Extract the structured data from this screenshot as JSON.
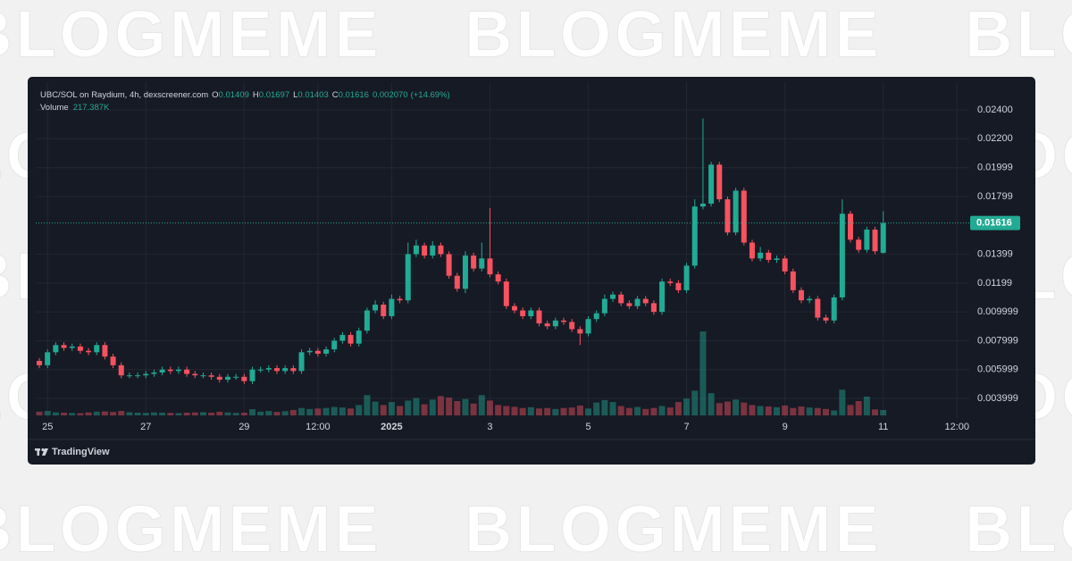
{
  "watermark": "BLOGMEME",
  "brand": "TradingView",
  "chart_data": {
    "type": "candlestick",
    "title": "UBC/SOL on Raydium, 4h, dexscreener.com",
    "ohlc_keys": [
      "O",
      "H",
      "L",
      "C"
    ],
    "change_label": "0.002070",
    "change_pct_label": "(+14.69%)",
    "volume_title": "Volume",
    "volume_value_label": "217.387K",
    "up_color": "#22ab94",
    "down_color": "#f7525f",
    "grid": true,
    "xlim": [
      -0.44,
      113.5
    ],
    "xticks": [
      {
        "value": 1,
        "label": "25"
      },
      {
        "value": 13,
        "label": "27"
      },
      {
        "value": 25,
        "label": "29"
      },
      {
        "value": 34,
        "label": "12:00"
      },
      {
        "value": 43,
        "label": "2025"
      },
      {
        "value": 55,
        "label": "3"
      },
      {
        "value": 67,
        "label": "5"
      },
      {
        "value": 79,
        "label": "7"
      },
      {
        "value": 91,
        "label": "9"
      },
      {
        "value": 103,
        "label": "11"
      },
      {
        "value": 112,
        "label": "12:00"
      }
    ],
    "ylim": [
      0.00264,
      0.02542
    ],
    "yticks": [
      {
        "value": 0.024,
        "label": "0.02400"
      },
      {
        "value": 0.022,
        "label": "0.02200"
      },
      0.01999,
      0.01799,
      0.01399,
      0.01199,
      0.009999,
      0.007999,
      0.005999,
      0.003999
    ],
    "open": [
      0.0066,
      0.0063,
      0.0072,
      0.0077,
      0.0075,
      0.0076,
      0.0073,
      0.0072,
      0.0077,
      0.0069,
      0.0063,
      0.0056,
      0.0056,
      0.0056,
      0.0057,
      0.0058,
      0.006,
      0.0059,
      0.006,
      0.0057,
      0.0056,
      0.0056,
      0.0055,
      0.0053,
      0.0055,
      0.0055,
      0.0052,
      0.006,
      0.006,
      0.0061,
      0.0059,
      0.0061,
      0.0059,
      0.0072,
      0.0073,
      0.0071,
      0.0074,
      0.008,
      0.0084,
      0.0078,
      0.0087,
      0.0101,
      0.0105,
      0.0097,
      0.0109,
      0.0108,
      0.014,
      0.0146,
      0.0139,
      0.0146,
      0.014,
      0.0125,
      0.0116,
      0.0139,
      0.013,
      0.0137,
      0.0126,
      0.0121,
      0.0104,
      0.0101,
      0.0097,
      0.0101,
      0.0092,
      0.009,
      0.0094,
      0.0093,
      0.0088,
      0.0085,
      0.0095,
      0.0099,
      0.0109,
      0.0112,
      0.0106,
      0.0104,
      0.0109,
      0.0106,
      0.01,
      0.0121,
      0.012,
      0.0115,
      0.0132,
      0.0173,
      0.0175,
      0.0202,
      0.0178,
      0.0155,
      0.0184,
      0.0148,
      0.0137,
      0.0141,
      0.0136,
      0.0137,
      0.0128,
      0.0115,
      0.0108,
      0.0109,
      0.0096,
      0.0094,
      0.011,
      0.0168,
      0.015,
      0.0143,
      0.0157,
      0.01409
    ],
    "high": [
      0.0068,
      0.0074,
      0.0079,
      0.0079,
      0.0078,
      0.0078,
      0.0075,
      0.0079,
      0.0079,
      0.0071,
      0.0065,
      0.0058,
      0.0058,
      0.0059,
      0.006,
      0.0062,
      0.0062,
      0.0062,
      0.0062,
      0.0059,
      0.0058,
      0.0058,
      0.0057,
      0.0057,
      0.0057,
      0.0057,
      0.0062,
      0.0062,
      0.0063,
      0.0063,
      0.0063,
      0.0063,
      0.0074,
      0.0075,
      0.0075,
      0.0076,
      0.0082,
      0.0086,
      0.0086,
      0.0089,
      0.0103,
      0.0108,
      0.0107,
      0.0112,
      0.0111,
      0.0148,
      0.015,
      0.0148,
      0.0149,
      0.0148,
      0.0142,
      0.0127,
      0.0142,
      0.0141,
      0.0148,
      0.0172,
      0.0128,
      0.0123,
      0.0106,
      0.0103,
      0.0103,
      0.0103,
      0.0094,
      0.0096,
      0.0096,
      0.0095,
      0.009,
      0.0097,
      0.0101,
      0.0112,
      0.0114,
      0.0114,
      0.0108,
      0.0111,
      0.0111,
      0.0108,
      0.0123,
      0.0123,
      0.0122,
      0.0134,
      0.0178,
      0.0234,
      0.0204,
      0.0204,
      0.018,
      0.0186,
      0.0186,
      0.015,
      0.0145,
      0.0143,
      0.0139,
      0.0139,
      0.013,
      0.0117,
      0.0111,
      0.0111,
      0.0098,
      0.0112,
      0.0178,
      0.017,
      0.0152,
      0.0159,
      0.0159,
      0.01697
    ],
    "low": [
      0.0061,
      0.0061,
      0.007,
      0.0073,
      0.0073,
      0.0071,
      0.007,
      0.007,
      0.0067,
      0.0061,
      0.0054,
      0.0054,
      0.0054,
      0.0054,
      0.0055,
      0.0056,
      0.0057,
      0.0057,
      0.0055,
      0.0054,
      0.0054,
      0.0053,
      0.0051,
      0.0051,
      0.0053,
      0.005,
      0.005,
      0.0058,
      0.0058,
      0.0057,
      0.0057,
      0.0057,
      0.0057,
      0.007,
      0.0069,
      0.0069,
      0.0072,
      0.0078,
      0.0076,
      0.0076,
      0.0085,
      0.0099,
      0.0095,
      0.0095,
      0.0106,
      0.0106,
      0.0138,
      0.0137,
      0.0137,
      0.0138,
      0.0123,
      0.0114,
      0.0113,
      0.0128,
      0.0128,
      0.0124,
      0.0119,
      0.0102,
      0.0099,
      0.0095,
      0.0095,
      0.009,
      0.0088,
      0.0088,
      0.0091,
      0.0086,
      0.0077,
      0.0083,
      0.0093,
      0.0097,
      0.0107,
      0.0104,
      0.0102,
      0.0102,
      0.0104,
      0.0098,
      0.0098,
      0.0118,
      0.0113,
      0.0113,
      0.013,
      0.0171,
      0.0173,
      0.0176,
      0.0153,
      0.0153,
      0.0146,
      0.0135,
      0.0135,
      0.0134,
      0.0134,
      0.0126,
      0.0113,
      0.0106,
      0.0106,
      0.0094,
      0.0092,
      0.0092,
      0.0108,
      0.0148,
      0.0141,
      0.0141,
      0.014,
      0.01403
    ],
    "close": [
      0.0063,
      0.0072,
      0.0077,
      0.0075,
      0.0076,
      0.0073,
      0.0072,
      0.0077,
      0.0069,
      0.0063,
      0.0056,
      0.0056,
      0.0056,
      0.0057,
      0.0058,
      0.006,
      0.0059,
      0.006,
      0.0057,
      0.0056,
      0.0056,
      0.0055,
      0.0053,
      0.0055,
      0.0055,
      0.0052,
      0.006,
      0.006,
      0.0061,
      0.0059,
      0.0061,
      0.0059,
      0.0072,
      0.0073,
      0.0071,
      0.0074,
      0.008,
      0.0084,
      0.0078,
      0.0087,
      0.0101,
      0.0105,
      0.0097,
      0.0109,
      0.0108,
      0.014,
      0.0146,
      0.0139,
      0.0146,
      0.014,
      0.0125,
      0.0116,
      0.0139,
      0.013,
      0.0137,
      0.0126,
      0.0121,
      0.0104,
      0.0101,
      0.0097,
      0.0101,
      0.0092,
      0.009,
      0.0094,
      0.0093,
      0.0088,
      0.0085,
      0.0095,
      0.0099,
      0.0109,
      0.0112,
      0.0106,
      0.0104,
      0.0109,
      0.0106,
      0.01,
      0.0121,
      0.012,
      0.0115,
      0.0132,
      0.0173,
      0.0175,
      0.0202,
      0.0178,
      0.0155,
      0.0184,
      0.0148,
      0.0137,
      0.0141,
      0.0136,
      0.0137,
      0.0128,
      0.0115,
      0.0108,
      0.0109,
      0.0096,
      0.0094,
      0.011,
      0.0168,
      0.015,
      0.0143,
      0.0157,
      0.0142,
      0.01616
    ],
    "volume": [
      150000,
      180000,
      120000,
      110000,
      100000,
      90000,
      120000,
      150000,
      160000,
      140000,
      180000,
      130000,
      110000,
      100000,
      120000,
      110000,
      100000,
      90000,
      110000,
      120000,
      130000,
      110000,
      150000,
      120000,
      100000,
      110000,
      250000,
      150000,
      180000,
      140000,
      170000,
      220000,
      300000,
      260000,
      280000,
      300000,
      340000,
      320000,
      280000,
      420000,
      820000,
      560000,
      420000,
      540000,
      380000,
      600000,
      700000,
      450000,
      640000,
      780000,
      720000,
      580000,
      660000,
      480000,
      820000,
      600000,
      420000,
      380000,
      350000,
      300000,
      330000,
      280000,
      300000,
      260000,
      300000,
      320000,
      400000,
      280000,
      520000,
      620000,
      540000,
      380000,
      300000,
      340000,
      260000,
      300000,
      380000,
      320000,
      540000,
      680000,
      1000000,
      3400000,
      900000,
      500000,
      560000,
      640000,
      520000,
      420000,
      380000,
      360000,
      330000,
      400000,
      300000,
      360000,
      320000,
      300000,
      260000,
      200000,
      1040000,
      420000,
      580000,
      760000,
      240000,
      217387
    ]
  }
}
